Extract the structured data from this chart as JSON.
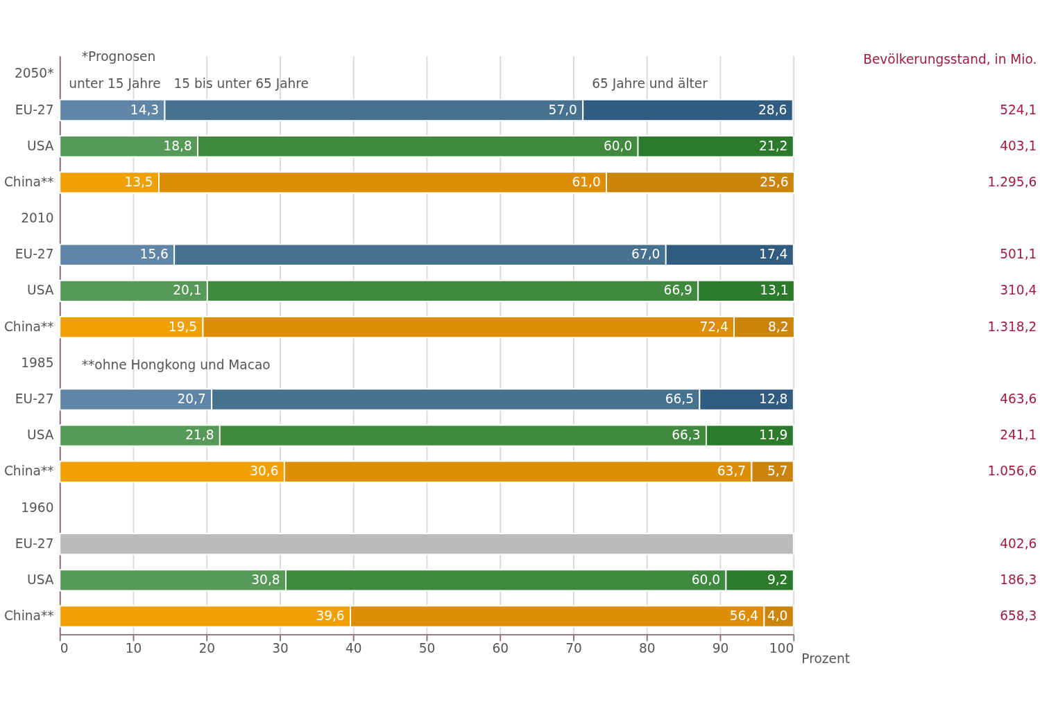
{
  "chart_data": [
    {
      "type": "bar",
      "orientation": "horizontal",
      "stacked": true,
      "categories": [
        "2050*",
        "EU-27",
        "USA",
        "China**",
        "2010",
        "EU-27",
        "USA",
        "China**",
        "1985",
        "EU-27",
        "USA",
        "China**",
        "1960",
        "EU-27",
        "USA",
        "China**"
      ],
      "series": [
        {
          "name": "unter 15 Jahre",
          "colors": [
            "#5f86a6",
            "#5f86a6",
            "#579a57",
            "#f0a000",
            "#5f86a6",
            "#5f86a6",
            "#579a57",
            "#f0a000",
            "#5f86a6",
            "#5f86a6",
            "#579a57",
            "#f0a000",
            "#5f86a6",
            "#5f86a6",
            "#579a57",
            "#f0a000"
          ],
          "values": [
            null,
            14.3,
            18.8,
            13.5,
            null,
            15.6,
            20.1,
            19.5,
            null,
            20.7,
            21.8,
            30.6,
            null,
            null,
            30.8,
            39.6
          ],
          "value_labels": [
            null,
            "14,3",
            "18,8",
            "13,5",
            null,
            "15,6",
            "20,1",
            "19,5",
            null,
            "20,7",
            "21,8",
            "30,6",
            null,
            null,
            "30,8",
            "39,6"
          ]
        },
        {
          "name": "15 bis unter 65 Jahre",
          "colors": [
            "#46718f",
            "#46718f",
            "#3f8a3f",
            "#de8e05",
            "#46718f",
            "#46718f",
            "#3f8a3f",
            "#de8e05",
            "#46718f",
            "#46718f",
            "#3f8a3f",
            "#de8e05",
            "#46718f",
            "#46718f",
            "#3f8a3f",
            "#de8e05"
          ],
          "values": [
            null,
            57.0,
            60.0,
            61.0,
            null,
            67.0,
            66.9,
            72.4,
            null,
            66.5,
            66.3,
            63.7,
            null,
            null,
            60.0,
            56.4
          ],
          "value_labels": [
            null,
            "57,0",
            "60,0",
            "61,0",
            null,
            "67,0",
            "66,9",
            "72,4",
            null,
            "66,5",
            "66,3",
            "63,7",
            null,
            null,
            "60,0",
            "56,4"
          ]
        },
        {
          "name": "65 Jahre und älter",
          "colors": [
            "#2f5c80",
            "#2f5c80",
            "#2c7a2c",
            "#cc850b",
            "#2f5c80",
            "#2f5c80",
            "#2c7a2c",
            "#cc850b",
            "#2f5c80",
            "#2f5c80",
            "#2c7a2c",
            "#cc850b",
            "#2f5c80",
            "#2f5c80",
            "#2c7a2c",
            "#cc850b"
          ],
          "values": [
            null,
            28.6,
            21.2,
            25.6,
            null,
            17.4,
            13.1,
            8.2,
            null,
            12.8,
            11.9,
            5.7,
            null,
            null,
            9.2,
            4.0
          ],
          "value_labels": [
            null,
            "28,6",
            "21,2",
            "25,6",
            null,
            "17,4",
            "13,1",
            "8,2",
            null,
            "12,8",
            "11,9",
            "5,7",
            null,
            null,
            "9,2",
            "4,0"
          ]
        },
        {
          "color": "#bbbbbb",
          "values": [
            null,
            null,
            null,
            null,
            null,
            null,
            null,
            null,
            null,
            null,
            null,
            null,
            null,
            100,
            null,
            null
          ]
        }
      ],
      "xlim": [
        0,
        100
      ],
      "xticks": [
        0,
        10,
        20,
        30,
        40,
        50,
        60,
        70,
        80,
        90,
        100
      ],
      "xlabel": "Prozent",
      "grid": "x",
      "legend": "top",
      "annotations": [
        "*Prognosen",
        "**ohne Hongkong und Macao"
      ]
    },
    {
      "type": "other",
      "title": "Bevölkerungsstand, in Mio.",
      "annotations": [
        "524,1",
        "403,1",
        "1.295,6",
        "501,1",
        "310,4",
        "1.318,2",
        "463,6",
        "241,1",
        "1.056,6",
        "402,6",
        "186,3",
        "658,3"
      ]
    }
  ]
}
